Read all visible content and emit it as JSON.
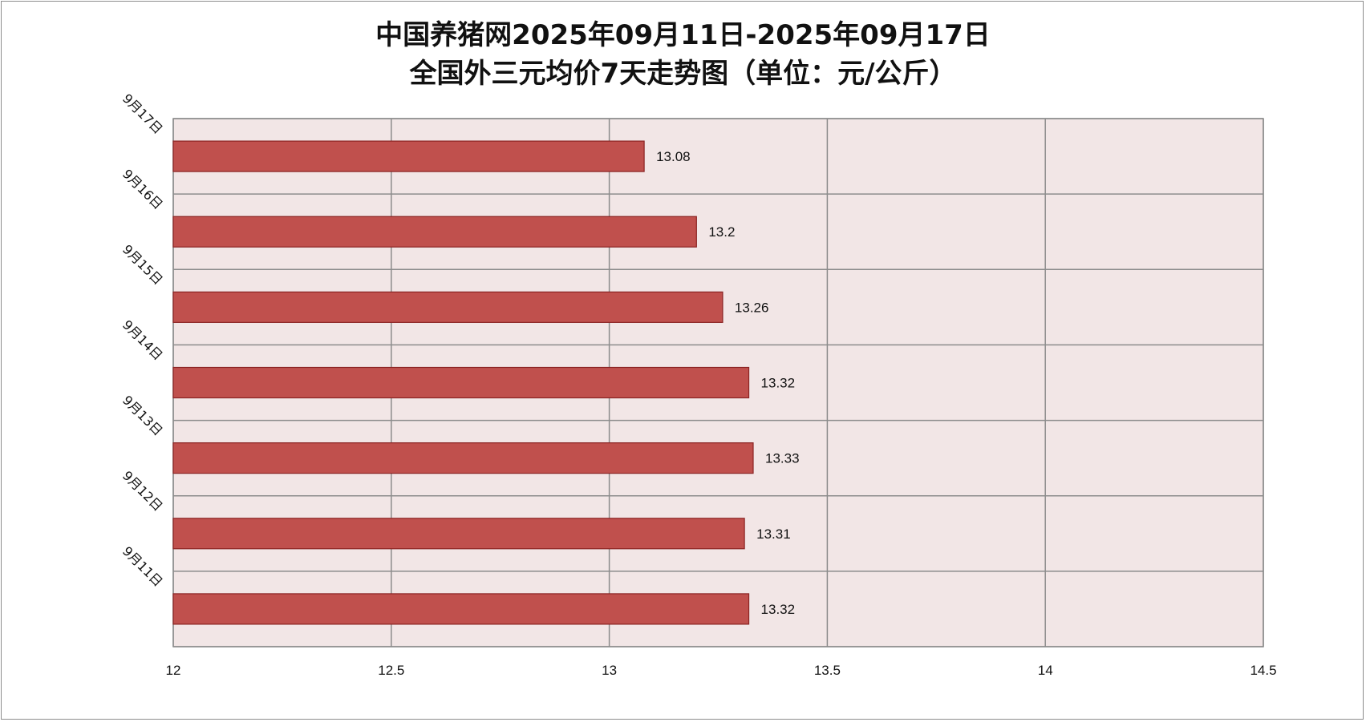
{
  "chart_data": {
    "type": "bar",
    "orientation": "horizontal",
    "title_lines": [
      "中国养猪网2025年09月11日-2025年09月17日",
      "全国外三元均价7天走势图（单位：元/公斤）"
    ],
    "categories": [
      "9月17日",
      "9月16日",
      "9月15日",
      "9月14日",
      "9月13日",
      "9月12日",
      "9月11日"
    ],
    "values": [
      13.08,
      13.2,
      13.26,
      13.32,
      13.33,
      13.31,
      13.32
    ],
    "data_labels": [
      "13.08",
      "13.2",
      "13.26",
      "13.32",
      "13.33",
      "13.31",
      "13.32"
    ],
    "xlim": [
      12,
      14.5
    ],
    "x_ticks": [
      12,
      12.5,
      13,
      13.5,
      14,
      14.5
    ],
    "x_tick_labels": [
      "12",
      "12.5",
      "13",
      "13.5",
      "14",
      "14.5"
    ],
    "grid": true,
    "legend": "none",
    "colors": {
      "bar_fill": "#c0504d",
      "bar_stroke": "#8b2323",
      "plot_background": "#f2e6e6",
      "grid": "#8c8c8c"
    }
  }
}
